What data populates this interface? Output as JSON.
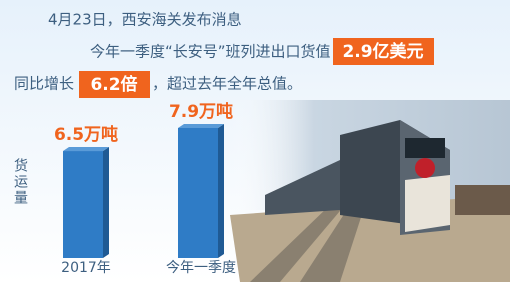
{
  "chart_data": {
    "type": "bar",
    "text": {
      "line1": "4月23日，西安海关发布消息",
      "line2": "今年一季度“长安号”班列进出口货值",
      "highlight1": "2.9亿美元",
      "line3a": "同比增长",
      "highlight2": "6.2倍",
      "line3b": "，超过去年全年总值。"
    },
    "y_label": "货运量",
    "categories": [
      "2017年",
      "今年一季度"
    ],
    "values": [
      6.5,
      7.9
    ],
    "value_labels": [
      "6.5万吨",
      "7.9万吨"
    ],
    "color": "#2f7cc6",
    "label_color": "#f0641e"
  }
}
